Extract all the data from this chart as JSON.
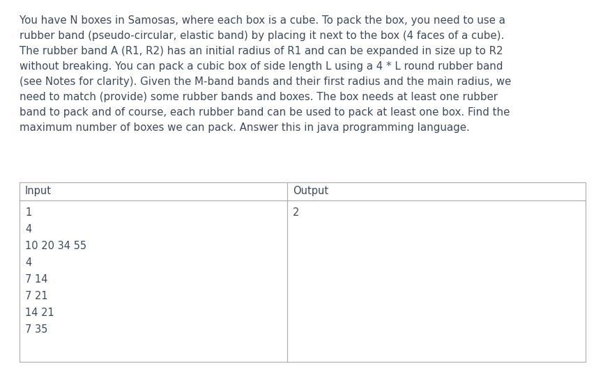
{
  "description_lines": [
    "You have N boxes in Samosas, where each box is a cube. To pack the box, you need to use a",
    "rubber band (pseudo-circular, elastic band) by placing it next to the box (4 faces of a cube).",
    "The rubber band A (R1, R2) has an initial radius of R1 and can be expanded in size up to R2",
    "without breaking. You can pack a cubic box of side length L using a 4 * L round rubber band",
    "(see Notes for clarity). Given the M-band bands and their first radius and the main radius, we",
    "need to match (provide) some rubber bands and boxes. The box needs at least one rubber",
    "band to pack and of course, each rubber band can be used to pack at least one box. Find the",
    "maximum number of boxes we can pack. Answer this in java programming language."
  ],
  "input_label": "Input",
  "output_label": "Output",
  "input_lines": [
    "1",
    "4",
    "10 20 34 55",
    "4",
    "7 14",
    "7 21",
    "14 21",
    "7 35"
  ],
  "output_lines": [
    "2"
  ],
  "bg_color": "#ffffff",
  "text_color": "#3d4a5c",
  "table_border_color": "#b0b0b0",
  "font_size_desc": 10.8,
  "font_size_table": 10.5,
  "figwidth": 8.65,
  "figheight": 5.36,
  "dpi": 100
}
